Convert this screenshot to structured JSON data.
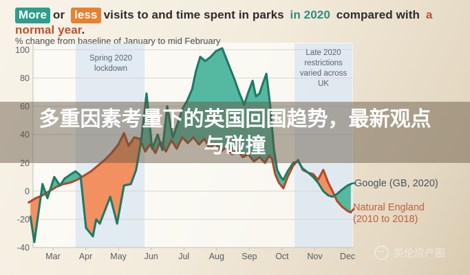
{
  "title": {
    "more": "More",
    "or": "or",
    "less": "less",
    "mid": "visits to and time spent in parks",
    "in2020": "in 2020",
    "compared": "compared with",
    "normal": "a normal year",
    "period": "."
  },
  "subtitle": "% change from baseline of January to mid February",
  "overlay_banner": {
    "line1": "多重因素考量下的英国回国趋势，最新观点",
    "line2": "与碰撞"
  },
  "watermark": {
    "text": "英伦房产圈"
  },
  "legend": {
    "google": "Google (GB, 2020)",
    "natural_england": "Natural England\n(2010 to 2018)"
  },
  "colors": {
    "chip_more_bg": "#2d9d8d",
    "chip_less_bg": "#e8812f",
    "title_in2020": "#2d8d80",
    "title_normal_year": "#bf4f2d",
    "banner_bg": "rgba(97,82,63,0.46)",
    "legend_google": "#46545a",
    "legend_ne": "#bf5f40",
    "band_fill": "rgba(205,222,240,0.55)",
    "grid": "#d6d5cf",
    "axis": "#c3c1b9",
    "tick_label": "#575c63"
  },
  "chart_data": {
    "type": "line",
    "subtype": "difference-area",
    "title": "More or less visits to and time spent in parks in 2020 compared with a normal year.",
    "ylabel": "% change from baseline of January to mid February",
    "x_axis": {
      "ticks": [
        "Mar",
        "Apr",
        "May",
        "Jun",
        "Jul",
        "Aug",
        "Sep",
        "Oct",
        "Nov",
        "Dec"
      ],
      "tick_t": [
        3,
        4,
        5,
        6,
        7,
        8,
        9,
        10,
        11,
        12
      ]
    },
    "y_axis": {
      "min": -40,
      "max": 100,
      "step": 20,
      "gridlines": [
        100,
        80,
        60,
        40,
        20,
        0,
        -20,
        -40
      ]
    },
    "annotations": [
      {
        "label": "Spring 2020\nlockdown",
        "from": 3.69,
        "to": 5.8
      },
      {
        "label": "Late 2020\nrestrictions\nvaried across\nUK",
        "from": 10.38,
        "to": 12.15
      }
    ],
    "series": [
      {
        "name": "Google (GB, 2020)",
        "stroke": "#1e7a63",
        "fill": "#55b8a1",
        "points": [
          [
            2.31,
            -18
          ],
          [
            2.43,
            -36
          ],
          [
            2.68,
            5
          ],
          [
            2.83,
            -5
          ],
          [
            3.04,
            10
          ],
          [
            3.21,
            4
          ],
          [
            3.36,
            9
          ],
          [
            3.55,
            12
          ],
          [
            3.69,
            14
          ],
          [
            3.84,
            11
          ],
          [
            4.01,
            -26
          ],
          [
            4.22,
            -32
          ],
          [
            4.32,
            -20
          ],
          [
            4.43,
            -23
          ],
          [
            4.75,
            -4
          ],
          [
            4.96,
            -23
          ],
          [
            5.17,
            4
          ],
          [
            5.38,
            5
          ],
          [
            5.54,
            15
          ],
          [
            5.69,
            35
          ],
          [
            5.86,
            69
          ],
          [
            6.03,
            30
          ],
          [
            6.2,
            40
          ],
          [
            6.34,
            29
          ],
          [
            6.49,
            60
          ],
          [
            6.66,
            38
          ],
          [
            6.81,
            48
          ],
          [
            6.95,
            58
          ],
          [
            7.1,
            64
          ],
          [
            7.25,
            72
          ],
          [
            7.37,
            85
          ],
          [
            7.5,
            95
          ],
          [
            7.65,
            92
          ],
          [
            7.82,
            95
          ],
          [
            7.98,
            99
          ],
          [
            8.17,
            101
          ],
          [
            8.34,
            91
          ],
          [
            8.53,
            80
          ],
          [
            8.7,
            69
          ],
          [
            8.84,
            61
          ],
          [
            8.97,
            70
          ],
          [
            9.1,
            78
          ],
          [
            9.2,
            67
          ],
          [
            9.31,
            69
          ],
          [
            9.41,
            76
          ],
          [
            9.52,
            83
          ],
          [
            9.64,
            60
          ],
          [
            9.75,
            30
          ],
          [
            9.85,
            15
          ],
          [
            9.96,
            10
          ],
          [
            10.04,
            8
          ],
          [
            10.17,
            14
          ],
          [
            10.34,
            20
          ],
          [
            10.49,
            21
          ],
          [
            10.63,
            16
          ],
          [
            10.8,
            13
          ],
          [
            10.95,
            10
          ],
          [
            11.1,
            6
          ],
          [
            11.26,
            0
          ],
          [
            11.41,
            -3
          ],
          [
            11.54,
            -4
          ],
          [
            11.68,
            -2
          ],
          [
            11.83,
            1
          ],
          [
            12.0,
            4
          ],
          [
            12.1,
            5
          ]
        ]
      },
      {
        "name": "Natural England (2010 to 2018)",
        "stroke": "#b04a2c",
        "fill": "#f29061",
        "points": [
          [
            2.26,
            -8
          ],
          [
            2.47,
            -5
          ],
          [
            2.68,
            -3
          ],
          [
            2.89,
            0
          ],
          [
            3.11,
            3
          ],
          [
            3.32,
            5
          ],
          [
            3.53,
            6
          ],
          [
            3.74,
            8
          ],
          [
            3.95,
            11
          ],
          [
            4.16,
            14
          ],
          [
            4.37,
            18
          ],
          [
            4.58,
            22
          ],
          [
            4.79,
            27
          ],
          [
            5.0,
            33
          ],
          [
            5.17,
            41
          ],
          [
            5.31,
            32
          ],
          [
            5.48,
            38
          ],
          [
            5.65,
            37
          ],
          [
            5.82,
            28
          ],
          [
            5.96,
            33
          ],
          [
            6.13,
            27
          ],
          [
            6.28,
            35
          ],
          [
            6.45,
            28
          ],
          [
            6.62,
            36
          ],
          [
            6.78,
            30
          ],
          [
            6.95,
            38
          ],
          [
            7.12,
            34
          ],
          [
            7.29,
            38
          ],
          [
            7.46,
            33
          ],
          [
            7.63,
            37
          ],
          [
            7.79,
            30
          ],
          [
            7.96,
            34
          ],
          [
            8.13,
            28
          ],
          [
            8.3,
            31
          ],
          [
            8.47,
            26
          ],
          [
            8.64,
            29
          ],
          [
            8.8,
            24
          ],
          [
            8.97,
            26
          ],
          [
            9.14,
            21
          ],
          [
            9.31,
            24
          ],
          [
            9.48,
            20
          ],
          [
            9.6,
            25
          ],
          [
            9.69,
            23
          ],
          [
            9.79,
            12
          ],
          [
            9.9,
            6
          ],
          [
            10.04,
            2
          ],
          [
            10.17,
            10
          ],
          [
            10.34,
            18
          ],
          [
            10.49,
            22
          ],
          [
            10.63,
            15
          ],
          [
            10.8,
            13
          ],
          [
            10.95,
            12
          ],
          [
            11.1,
            8
          ],
          [
            11.26,
            15
          ],
          [
            11.41,
            6
          ],
          [
            11.54,
            0
          ],
          [
            11.68,
            -7
          ],
          [
            11.83,
            -11
          ],
          [
            12.0,
            -14
          ],
          [
            12.1,
            -15
          ]
        ]
      }
    ]
  }
}
